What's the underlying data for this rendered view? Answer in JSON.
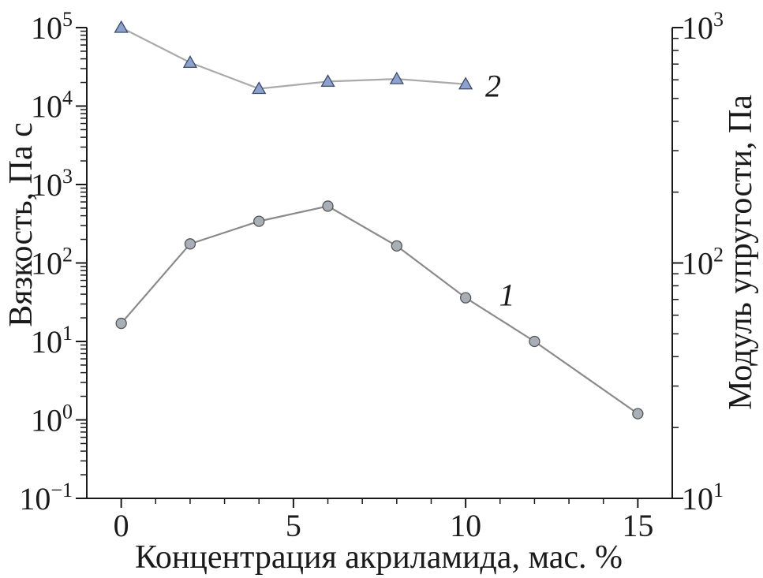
{
  "chart_data": {
    "type": "scatter",
    "xlabel": "Концентрация акриламида, мас. %",
    "ylabel": "Вязкость, Па с",
    "y2label": "Модуль упругости, Па",
    "x_ticks": [
      "0",
      "5",
      "10",
      "15"
    ],
    "xlim": [
      -1,
      16
    ],
    "ylim": [
      0.1,
      100000
    ],
    "y_scale": "log",
    "y_ticks": [
      {
        "base": "10",
        "exp": "−1"
      },
      {
        "base": "10",
        "exp": "0"
      },
      {
        "base": "10",
        "exp": "1"
      },
      {
        "base": "10",
        "exp": "2"
      },
      {
        "base": "10",
        "exp": "3"
      },
      {
        "base": "10",
        "exp": "4"
      },
      {
        "base": "10",
        "exp": "5"
      }
    ],
    "y2lim": [
      10,
      1000
    ],
    "y2_scale": "log",
    "y2_ticks": [
      {
        "base": "10",
        "exp": "1"
      },
      {
        "base": "10",
        "exp": "2"
      },
      {
        "base": "10",
        "exp": "3"
      }
    ],
    "grid": false,
    "series": [
      {
        "name": "1",
        "axis": "left",
        "marker": "circle",
        "color": "#a9afb6",
        "line_color": "#8a8a8a",
        "x": [
          0,
          2,
          4,
          6,
          8,
          10,
          12,
          15
        ],
        "y": [
          17,
          175,
          340,
          530,
          165,
          36,
          10,
          1.2
        ]
      },
      {
        "name": "2",
        "axis": "right",
        "marker": "triangle",
        "color": "#8ea2cf",
        "line_color": "#aaaaaa",
        "x": [
          0,
          2,
          4,
          6,
          8,
          10
        ],
        "y": [
          1000,
          710,
          550,
          590,
          605,
          575
        ]
      }
    ]
  }
}
